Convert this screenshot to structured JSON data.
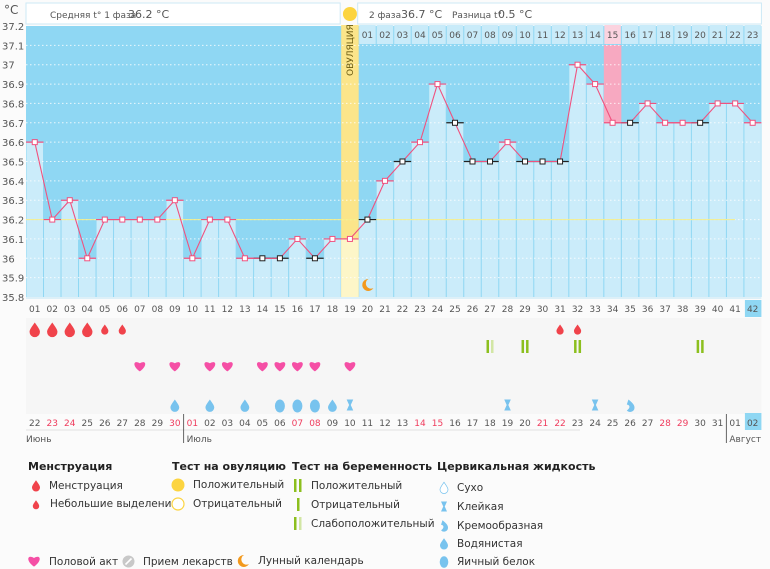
{
  "header": {
    "unit": "°C",
    "phase1_label": "Средняя t° 1 фаза",
    "phase1_value": "36.2 °C",
    "phase2_label": "2 фаза",
    "phase2_value": "36.7 °C",
    "diff_label": "Разница t°",
    "diff_value": "0.5 °C",
    "ovulation_label": "ОВУЛЯЦИЯ"
  },
  "colors": {
    "above": "#8fd7f3",
    "bar": "#cbecfa",
    "line": "#f0527f",
    "ovulation": "#fbe58a",
    "highlight_pink": "#f7a9c1",
    "menstruation": "#f0434b",
    "heart": "#f54fa5",
    "test": "#8cbf1e",
    "cervical": "#78c3ee",
    "sun": "#fcd440",
    "moon": "#f3991c",
    "red_date": "#ef3d5e"
  },
  "chart_data": {
    "type": "line",
    "title": "",
    "ylabel": "°C",
    "ylim": [
      35.8,
      37.2
    ],
    "yticks": [
      "37.2",
      "37.1",
      "37",
      "36.9",
      "36.8",
      "36.7",
      "36.6",
      "36.5",
      "36.4",
      "36.3",
      "36.2",
      "36.1",
      "36",
      "35.9",
      "35.8"
    ],
    "cycle_days": [
      "01",
      "02",
      "03",
      "04",
      "05",
      "06",
      "07",
      "08",
      "09",
      "10",
      "11",
      "12",
      "13",
      "14",
      "15",
      "16",
      "17",
      "18",
      "19",
      "20",
      "21",
      "22",
      "23",
      "24",
      "25",
      "26",
      "27",
      "28",
      "29",
      "30",
      "31",
      "32",
      "33",
      "34",
      "35",
      "36",
      "37",
      "38",
      "39",
      "40",
      "41",
      "42"
    ],
    "temperatures": [
      36.6,
      36.2,
      36.3,
      36.0,
      36.2,
      36.2,
      36.2,
      36.2,
      36.3,
      36.0,
      36.2,
      36.2,
      36.0,
      36.0,
      36.0,
      36.1,
      36.0,
      36.1,
      36.1,
      36.2,
      36.4,
      36.5,
      36.6,
      36.9,
      36.7,
      36.5,
      36.5,
      36.6,
      36.5,
      36.5,
      36.5,
      37.0,
      36.9,
      36.7,
      36.7,
      36.8,
      36.7,
      36.7,
      36.7,
      36.8,
      36.8,
      36.7
    ],
    "black_marker_days": [
      14,
      15,
      17,
      20,
      22,
      25,
      26,
      27,
      29,
      30,
      31,
      35,
      39
    ],
    "cover_line": 36.2,
    "ovulation_day": 19,
    "phase2_start_day": 20,
    "phase2_day_labels": [
      "01",
      "02",
      "03",
      "04",
      "05",
      "06",
      "07",
      "08",
      "09",
      "10",
      "11",
      "12",
      "13",
      "14",
      "15",
      "16",
      "17",
      "18",
      "19",
      "20",
      "21",
      "22",
      "23"
    ],
    "pink_day": 34,
    "current_day": 42,
    "moon_day": 20,
    "grid": true
  },
  "rows": {
    "menstruation": {
      "1": "heavy",
      "2": "heavy",
      "3": "heavy",
      "4": "heavy",
      "5": "light",
      "6": "light",
      "31": "light",
      "32": "light"
    },
    "pregnancy_test": {
      "27": "weak",
      "29": "positive",
      "32": "positive",
      "39": "positive"
    },
    "intercourse": [
      7,
      9,
      11,
      12,
      14,
      15,
      16,
      17,
      19
    ],
    "cervical": {
      "9": "watery",
      "11": "watery",
      "13": "watery",
      "15": "egg",
      "16": "egg",
      "17": "egg",
      "18": "watery",
      "19": "sticky",
      "28": "sticky",
      "33": "sticky",
      "35": "creamy"
    }
  },
  "dates": [
    {
      "d": "22",
      "red": false
    },
    {
      "d": "23",
      "red": true
    },
    {
      "d": "24",
      "red": true
    },
    {
      "d": "25",
      "red": false
    },
    {
      "d": "26",
      "red": false
    },
    {
      "d": "27",
      "red": false
    },
    {
      "d": "28",
      "red": false
    },
    {
      "d": "29",
      "red": false
    },
    {
      "d": "30",
      "red": true
    },
    {
      "d": "01",
      "red": true
    },
    {
      "d": "02",
      "red": false
    },
    {
      "d": "03",
      "red": false
    },
    {
      "d": "04",
      "red": false
    },
    {
      "d": "05",
      "red": false
    },
    {
      "d": "06",
      "red": false
    },
    {
      "d": "07",
      "red": true
    },
    {
      "d": "08",
      "red": true
    },
    {
      "d": "09",
      "red": false
    },
    {
      "d": "10",
      "red": false
    },
    {
      "d": "11",
      "red": false
    },
    {
      "d": "12",
      "red": false
    },
    {
      "d": "13",
      "red": false
    },
    {
      "d": "14",
      "red": true
    },
    {
      "d": "15",
      "red": true
    },
    {
      "d": "16",
      "red": false
    },
    {
      "d": "17",
      "red": false
    },
    {
      "d": "18",
      "red": false
    },
    {
      "d": "19",
      "red": false
    },
    {
      "d": "20",
      "red": false
    },
    {
      "d": "21",
      "red": true
    },
    {
      "d": "22",
      "red": true
    },
    {
      "d": "23",
      "red": false
    },
    {
      "d": "24",
      "red": false
    },
    {
      "d": "25",
      "red": false
    },
    {
      "d": "26",
      "red": false
    },
    {
      "d": "27",
      "red": false
    },
    {
      "d": "28",
      "red": true
    },
    {
      "d": "29",
      "red": true
    },
    {
      "d": "30",
      "red": false
    },
    {
      "d": "31",
      "red": false
    },
    {
      "d": "01",
      "red": false
    },
    {
      "d": "02",
      "red": false
    }
  ],
  "months": [
    {
      "name": "Июнь",
      "start_day": 1
    },
    {
      "name": "Июль",
      "start_day": 10
    },
    {
      "name": "Август",
      "start_day": 41
    }
  ],
  "legend": {
    "menstruation_title": "Менструация",
    "menstruation": "Менструация",
    "spotting": "Небольшие выделения",
    "ovulation_title": "Тест на овуляцию",
    "ov_positive": "Положительный",
    "ov_negative": "Отрицательный",
    "pregnancy_title": "Тест на беременность",
    "pr_positive": "Положительный",
    "pr_negative": "Отрицательный",
    "pr_weak": "Слабоположительный",
    "cervical_title": "Цервикальная жидкость",
    "dry": "Сухо",
    "sticky": "Клейкая",
    "creamy": "Кремообразная",
    "watery": "Водянистая",
    "egg": "Яичный белок",
    "intercourse": "Половой акт",
    "medication": "Прием лекарств",
    "moon": "Лунный календарь"
  }
}
